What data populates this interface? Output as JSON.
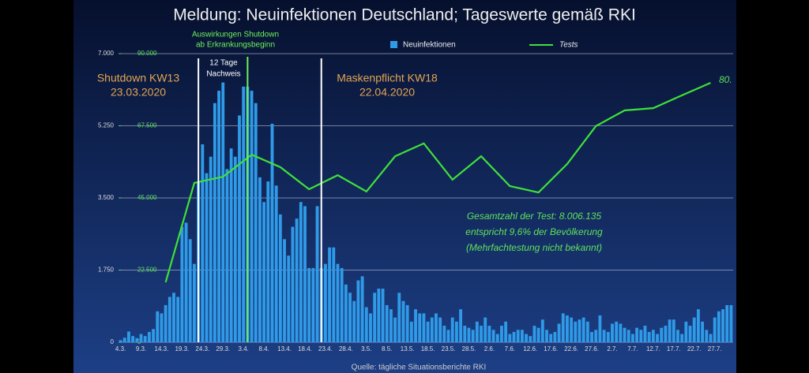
{
  "chart_data": {
    "type": "bar",
    "title": "Meldung: Neuinfektionen Deutschland; Tageswerte gemäß RKI",
    "source": "Quelle: tägliche Situationsberichte RKI",
    "categories": [
      "4.3.",
      null,
      null,
      null,
      null,
      "9.3.",
      null,
      null,
      null,
      null,
      "14.3.",
      null,
      null,
      null,
      null,
      "19.3.",
      null,
      null,
      null,
      null,
      "24.3.",
      null,
      null,
      null,
      null,
      "29.3.",
      null,
      null,
      null,
      null,
      "3.4.",
      null,
      null,
      null,
      null,
      "8.4.",
      null,
      null,
      null,
      null,
      "13.4.",
      null,
      null,
      null,
      null,
      "18.4.",
      null,
      null,
      null,
      null,
      "23.4.",
      null,
      null,
      null,
      null,
      "28.4.",
      null,
      null,
      null,
      null,
      "3.5.",
      null,
      null,
      null,
      null,
      "8.5.",
      null,
      null,
      null,
      null,
      "13.5.",
      null,
      null,
      null,
      null,
      "18.5.",
      null,
      null,
      null,
      null,
      "23.5.",
      null,
      null,
      null,
      null,
      "28.5.",
      null,
      null,
      null,
      null,
      "2.6.",
      null,
      null,
      null,
      null,
      "7.6.",
      null,
      null,
      null,
      null,
      "12.6.",
      null,
      null,
      null,
      null,
      "17.6.",
      null,
      null,
      null,
      null,
      "22.6.",
      null,
      null,
      null,
      null,
      "27.6.",
      null,
      null,
      null,
      null,
      "2.7.",
      null,
      null,
      null,
      null,
      "7.7.",
      null,
      null,
      null,
      null,
      "12.7.",
      null,
      null,
      null,
      null,
      "17.7.",
      null,
      null,
      null,
      null,
      "22.7.",
      null,
      null,
      null,
      null,
      "27.7.",
      null,
      null,
      null,
      null
    ],
    "series": [
      {
        "name": "Neuinfektionen",
        "color": "#2f9be8",
        "values": [
          50,
          110,
          260,
          150,
          100,
          200,
          150,
          250,
          320,
          750,
          700,
          900,
          1100,
          1200,
          1100,
          2800,
          2900,
          2500,
          1900,
          3900,
          4800,
          4100,
          4500,
          5800,
          6100,
          6300,
          4200,
          4700,
          4500,
          5500,
          6200,
          6200,
          6100,
          5800,
          4000,
          3400,
          3900,
          5300,
          3800,
          3100,
          2500,
          2100,
          2800,
          3000,
          3400,
          3300,
          1800,
          1800,
          3300,
          1800,
          1900,
          2300,
          2300,
          1900,
          1800,
          1400,
          1200,
          1000,
          1500,
          1600,
          850,
          700,
          1200,
          1300,
          1300,
          900,
          800,
          600,
          1200,
          1000,
          900,
          500,
          800,
          700,
          700,
          500,
          600,
          700,
          600,
          400,
          300,
          600,
          500,
          800,
          400,
          350,
          300,
          500,
          400,
          600,
          400,
          300,
          200,
          400,
          500,
          200,
          250,
          300,
          300,
          200,
          150,
          400,
          350,
          550,
          300,
          200,
          250,
          450,
          700,
          650,
          600,
          500,
          550,
          600,
          500,
          250,
          300,
          650,
          300,
          250,
          450,
          500,
          450,
          350,
          300,
          200,
          350,
          300,
          400,
          250,
          300,
          200,
          350,
          400,
          550,
          550,
          300,
          200,
          500,
          400,
          600,
          800,
          500,
          300,
          200,
          600,
          750,
          800,
          900,
          900
        ]
      },
      {
        "name": "Tests",
        "color": "#3fe03a",
        "axis": "y2",
        "type": "line",
        "x": [
          "15.3.",
          "22.3.",
          "29.3.",
          "5.4.",
          "12.4.",
          "19.4.",
          "26.4.",
          "3.5.",
          "10.5.",
          "17.5.",
          "24.5.",
          "31.5.",
          "7.6.",
          "14.6.",
          "21.6.",
          "28.6.",
          "5.7.",
          "12.7.",
          "19.7.",
          "26.7."
        ],
        "values": [
          18700,
          49700,
          51600,
          58500,
          54600,
          47700,
          52100,
          47000,
          58000,
          62000,
          50700,
          58000,
          48700,
          46700,
          55600,
          67400,
          72300,
          73000,
          77000,
          80900
        ]
      }
    ],
    "ylim": [
      0,
      7000
    ],
    "yticks": [
      0,
      {
        "value": 1750,
        "label": "1.750"
      },
      {
        "value": 3500,
        "label": "3.500"
      },
      {
        "value": 5250,
        "label": "5.250"
      },
      {
        "value": 7000,
        "label": "7.000"
      }
    ],
    "y2lim": [
      0,
      90000
    ],
    "y2ticks": [
      0,
      {
        "value": 22500,
        "label": "22.500"
      },
      {
        "value": 45000,
        "label": "45.000"
      },
      {
        "value": 67500,
        "label": "67.500"
      },
      {
        "value": 90000,
        "label": "90.000"
      }
    ],
    "grid": true,
    "event_lines": [
      {
        "x": "23.3.",
        "color": "#ffffff"
      },
      {
        "x": "4.4.",
        "color": "#6ef05a"
      },
      {
        "x": "22.4.",
        "color": "#ffffff"
      }
    ],
    "annotations": [
      {
        "text": [
          "Shutdown KW13",
          "23.03.2020"
        ]
      },
      {
        "text": [
          "Auswirkungen Shutdown",
          "ab Erkrankungsbeginn"
        ]
      },
      {
        "text": [
          "12 Tage",
          "Nachweis"
        ]
      },
      {
        "text": [
          "Maskenpflicht KW18",
          "22.04.2020"
        ]
      },
      {
        "text": [
          "Gesamtzahl der Test: 8.006.135",
          "entspricht 9,6% der Bevölkerung",
          "(Mehrfachtestung nicht bekannt)"
        ]
      },
      {
        "text": [
          "80."
        ]
      }
    ]
  }
}
